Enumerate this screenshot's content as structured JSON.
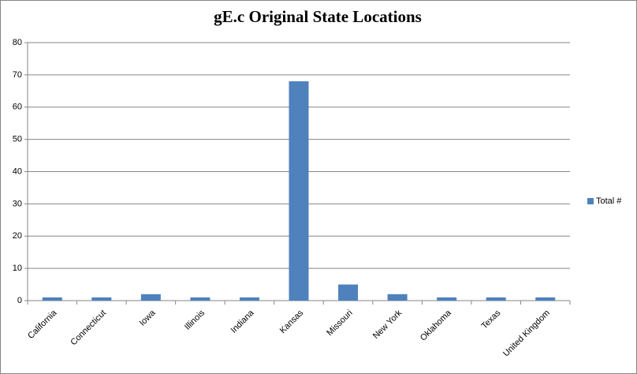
{
  "chart_data": {
    "type": "bar",
    "title": "gE.c Original State Locations",
    "categories": [
      "California",
      "Connecticut",
      "Iowa",
      "Illinois",
      "Indiana",
      "Kansas",
      "Missouri",
      "New York",
      "Oklahoma",
      "Texas",
      "United Kingdom"
    ],
    "series": [
      {
        "name": "Total #",
        "color": "#4f81bd",
        "values": [
          1,
          1,
          2,
          1,
          1,
          68,
          5,
          2,
          1,
          1,
          1
        ]
      }
    ],
    "ylim": [
      0,
      80
    ],
    "yticks": [
      0,
      10,
      20,
      30,
      40,
      50,
      60,
      70,
      80
    ],
    "grid": true,
    "legend": "right"
  }
}
